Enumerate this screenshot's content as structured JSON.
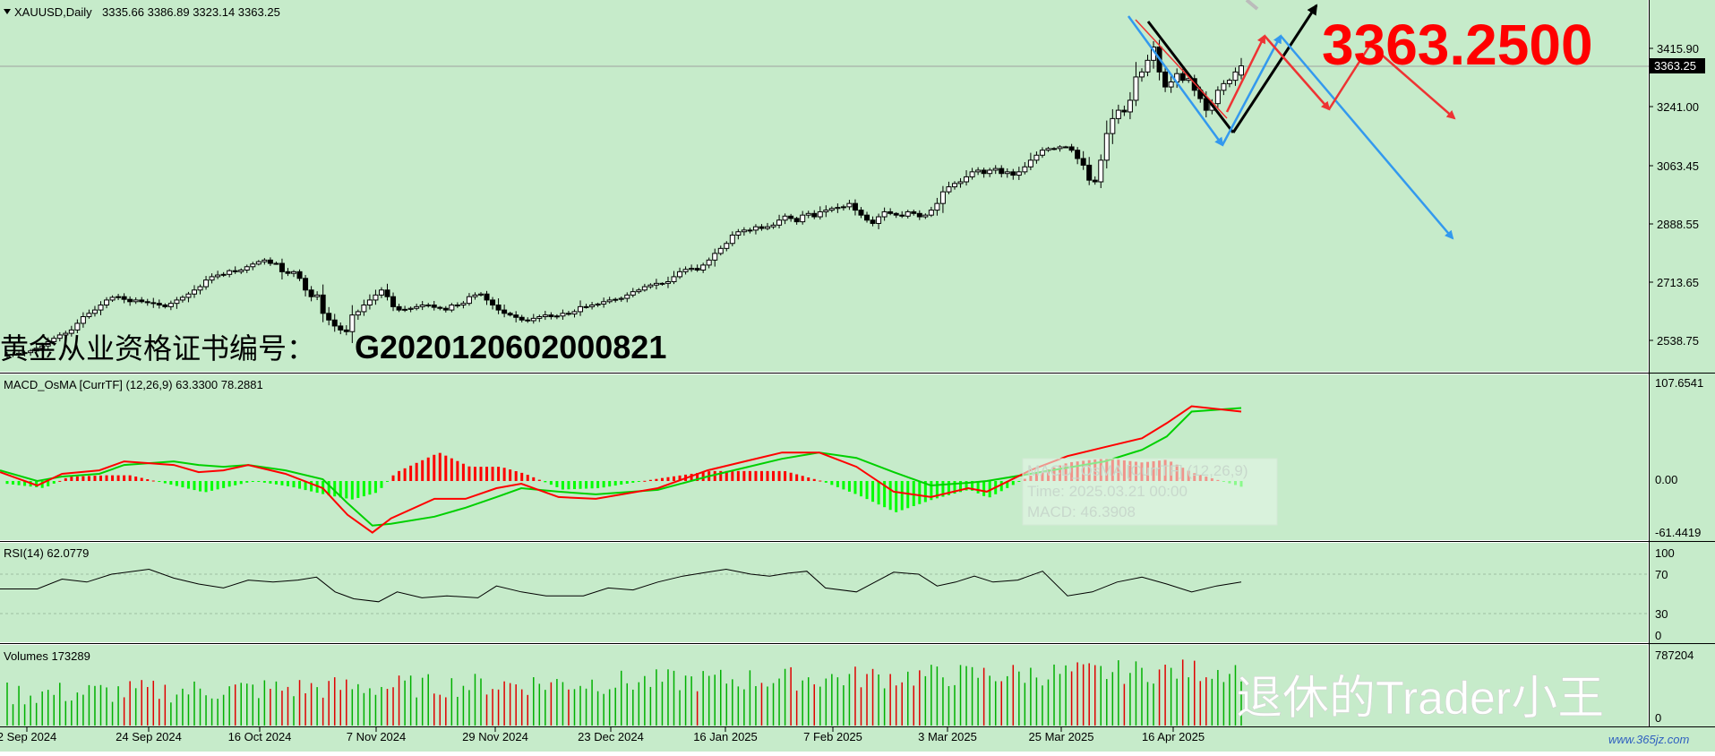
{
  "colors": {
    "background": "#c6ebca",
    "axis_bg": "#ffffff",
    "up_candle": "#ffffff",
    "down_candle": "#000000",
    "macd_line": "#ff0000",
    "signal_line": "#00d000",
    "osma_pos": "#ff0000",
    "osma_neg": "#00ff00",
    "vol_up": "#00b000",
    "vol_down": "#e00000",
    "arrow_red": "#ee3333",
    "arrow_blue": "#3399ee",
    "arrow_black": "#000000",
    "price_big": "#ff0000"
  },
  "header": {
    "symbol_label": "XAUUSD,Daily",
    "ohlc": "3335.66 3386.89 3323.14 3363.25"
  },
  "price_overlay": "3363.2500",
  "current_price_tag": "3363.25",
  "watermark_certificate": "黄金从业资格证书编号：",
  "certificate_number": "G2020120602000821",
  "watermark_author": "退休的Trader小王",
  "site_watermark": "www.365jz.com",
  "price_axis": {
    "ticks": [
      "3415.90",
      "3241.00",
      "3063.45",
      "2888.55",
      "2713.65",
      "2538.75"
    ],
    "values": [
      3415.9,
      3241.0,
      3063.45,
      2888.55,
      2713.65,
      2538.75
    ]
  },
  "macd_panel": {
    "label": "MACD_OsMA [CurrTF] (12,26,9) 63.3300 78.2881",
    "ticks": [
      "107.6541",
      "0.00",
      "-61.4419"
    ],
    "tooltip_lines": [
      "MACD_OsMA [CurrTF] (12,26,9)",
      "Time: 2025.03.21 00:00",
      "MACD: 46.3908"
    ]
  },
  "rsi_panel": {
    "label": "RSI(14) 62.0779",
    "ticks": [
      "100",
      "70",
      "30",
      "0"
    ]
  },
  "volume_panel": {
    "label": "Volumes 173289",
    "ticks": [
      "787204",
      "0"
    ]
  },
  "time_axis": {
    "labels": [
      "2 Sep 2024",
      "24 Sep 2024",
      "16 Oct 2024",
      "7 Nov 2024",
      "29 Nov 2024",
      "23 Dec 2024",
      "16 Jan 2025",
      "7 Feb 2025",
      "3 Mar 2025",
      "25 Mar 2025",
      "16 Apr 2025"
    ]
  },
  "chart_data": {
    "type": "candlestick",
    "symbol": "XAUUSD",
    "timeframe": "Daily",
    "ylim": [
      2470,
      3500
    ],
    "last": {
      "open": 3335.66,
      "high": 3386.89,
      "low": 3323.14,
      "close": 3363.25
    },
    "closes": [
      2495,
      2497,
      2500,
      2502,
      2507,
      2515,
      2522,
      2535,
      2545,
      2555,
      2560,
      2570,
      2590,
      2610,
      2620,
      2630,
      2645,
      2660,
      2668,
      2670,
      2662,
      2655,
      2660,
      2655,
      2652,
      2650,
      2645,
      2640,
      2650,
      2660,
      2668,
      2678,
      2690,
      2700,
      2720,
      2730,
      2735,
      2737,
      2748,
      2745,
      2750,
      2760,
      2768,
      2775,
      2780,
      2770,
      2770,
      2745,
      2740,
      2745,
      2725,
      2690,
      2670,
      2675,
      2620,
      2600,
      2582,
      2570,
      2565,
      2615,
      2625,
      2645,
      2660,
      2675,
      2690,
      2670,
      2640,
      2630,
      2632,
      2635,
      2640,
      2645,
      2645,
      2638,
      2635,
      2630,
      2645,
      2645,
      2650,
      2670,
      2675,
      2678,
      2660,
      2645,
      2630,
      2620,
      2615,
      2608,
      2600,
      2598,
      2605,
      2610,
      2615,
      2610,
      2612,
      2620,
      2618,
      2625,
      2640,
      2640,
      2645,
      2648,
      2655,
      2660,
      2662,
      2665,
      2675,
      2685,
      2690,
      2700,
      2705,
      2710,
      2710,
      2715,
      2730,
      2745,
      2752,
      2755,
      2750,
      2765,
      2780,
      2800,
      2815,
      2830,
      2855,
      2865,
      2870,
      2870,
      2880,
      2875,
      2880,
      2885,
      2900,
      2912,
      2905,
      2895,
      2915,
      2920,
      2910,
      2925,
      2930,
      2935,
      2938,
      2940,
      2950,
      2930,
      2915,
      2900,
      2890,
      2910,
      2925,
      2920,
      2915,
      2912,
      2925,
      2920,
      2910,
      2915,
      2930,
      2950,
      2985,
      3000,
      3010,
      3015,
      3030,
      3045,
      3050,
      3040,
      3050,
      3055,
      3040,
      3045,
      3035,
      3045,
      3060,
      3080,
      3095,
      3110,
      3115,
      3115,
      3120,
      3120,
      3110,
      3085,
      3065,
      3020,
      3015,
      3080,
      3160,
      3205,
      3230,
      3225,
      3260,
      3330,
      3345,
      3380,
      3420,
      3345,
      3300,
      3315,
      3340,
      3320,
      3325,
      3290,
      3265,
      3230,
      3250,
      3290,
      3310,
      3320,
      3345,
      3363.25
    ],
    "macd": {
      "x_pct": [
        0,
        3,
        5,
        8,
        10,
        14,
        16,
        18,
        20,
        23,
        26,
        28,
        30,
        31.5,
        35,
        37.5,
        40,
        42,
        45,
        48,
        53,
        57,
        60,
        63,
        66,
        69,
        72,
        75,
        78,
        79.5,
        83,
        86,
        89,
        92,
        94,
        96,
        100
      ],
      "macd": [
        10,
        -5,
        8,
        12,
        22,
        18,
        10,
        12,
        18,
        8,
        -8,
        -38,
        -58,
        -42,
        -20,
        -20,
        -8,
        -3,
        -18,
        -20,
        -8,
        12,
        22,
        32,
        32,
        16,
        -12,
        -18,
        -8,
        -12,
        12,
        28,
        38,
        48,
        65,
        84,
        78
      ],
      "signal": [
        12,
        0,
        5,
        8,
        18,
        22,
        18,
        16,
        18,
        12,
        2,
        -25,
        -50,
        -48,
        -40,
        -30,
        -18,
        -8,
        -12,
        -15,
        -10,
        5,
        15,
        25,
        32,
        26,
        10,
        -5,
        -2,
        0,
        8,
        15,
        22,
        35,
        50,
        78,
        82
      ]
    },
    "rsi": {
      "x_pct": [
        0,
        3,
        5,
        7,
        9,
        12,
        14,
        16,
        18,
        20,
        22,
        24,
        25.5,
        27,
        28.5,
        30.5,
        32,
        34,
        36,
        38.5,
        40,
        42,
        44,
        47,
        49,
        51,
        53,
        55,
        57,
        58.5,
        60.5,
        62,
        63.5,
        65,
        66.5,
        69,
        70.5,
        72,
        74,
        75.5,
        77,
        78.5,
        80,
        82,
        84,
        86,
        88,
        90,
        92,
        94,
        96,
        98,
        100
      ],
      "values": [
        55,
        55,
        65,
        62,
        70,
        75,
        66,
        60,
        56,
        64,
        62,
        64,
        67,
        52,
        45,
        42,
        52,
        46,
        48,
        46,
        58,
        52,
        48,
        48,
        56,
        54,
        62,
        68,
        72,
        75,
        70,
        68,
        71,
        73,
        56,
        52,
        62,
        72,
        70,
        58,
        62,
        68,
        62,
        64,
        73,
        48,
        52,
        62,
        67,
        60,
        52,
        58,
        62.08
      ]
    },
    "volume_max": 787204,
    "last_volume": 173289,
    "arrows_note": "forecast arrows drawn on price pane"
  }
}
